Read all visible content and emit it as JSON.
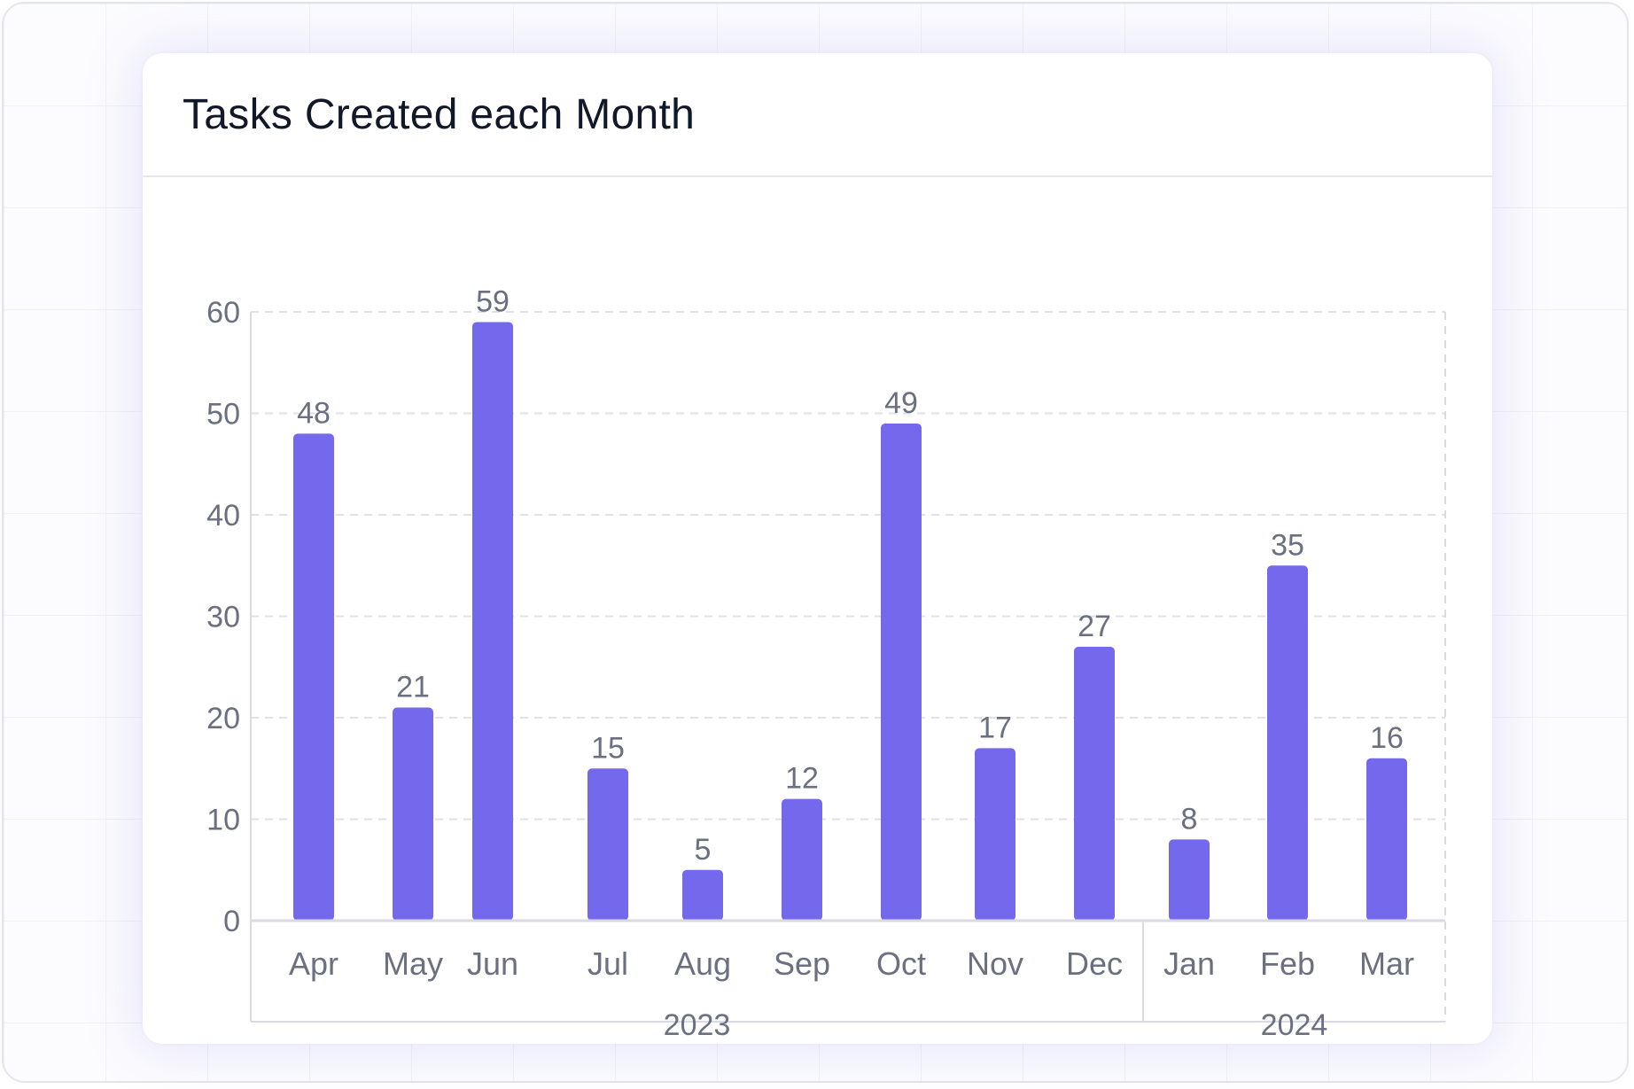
{
  "card": {
    "title": "Tasks Created each Month"
  },
  "colors": {
    "bar": "#7469ED",
    "grid": "#e0e1e8",
    "axis": "#d9dae2",
    "tick_text": "#6b7080",
    "title_text": "#111827"
  },
  "chart_data": {
    "type": "bar",
    "title": "Tasks Created each Month",
    "xlabel": "",
    "ylabel": "",
    "ylim": [
      0,
      60
    ],
    "yticks": [
      0,
      10,
      20,
      30,
      40,
      50,
      60
    ],
    "grid": true,
    "categories": [
      "Apr",
      "May",
      "Jun",
      "Jul",
      "Aug",
      "Sep",
      "Oct",
      "Nov",
      "Dec",
      "Jan",
      "Feb",
      "Mar"
    ],
    "groups": [
      {
        "label": "2023",
        "start": 0,
        "end": 8
      },
      {
        "label": "2024",
        "start": 9,
        "end": 11
      }
    ],
    "series": [
      {
        "name": "Tasks Created",
        "values": [
          48,
          21,
          59,
          15,
          5,
          12,
          49,
          17,
          27,
          8,
          35,
          16
        ]
      }
    ]
  }
}
